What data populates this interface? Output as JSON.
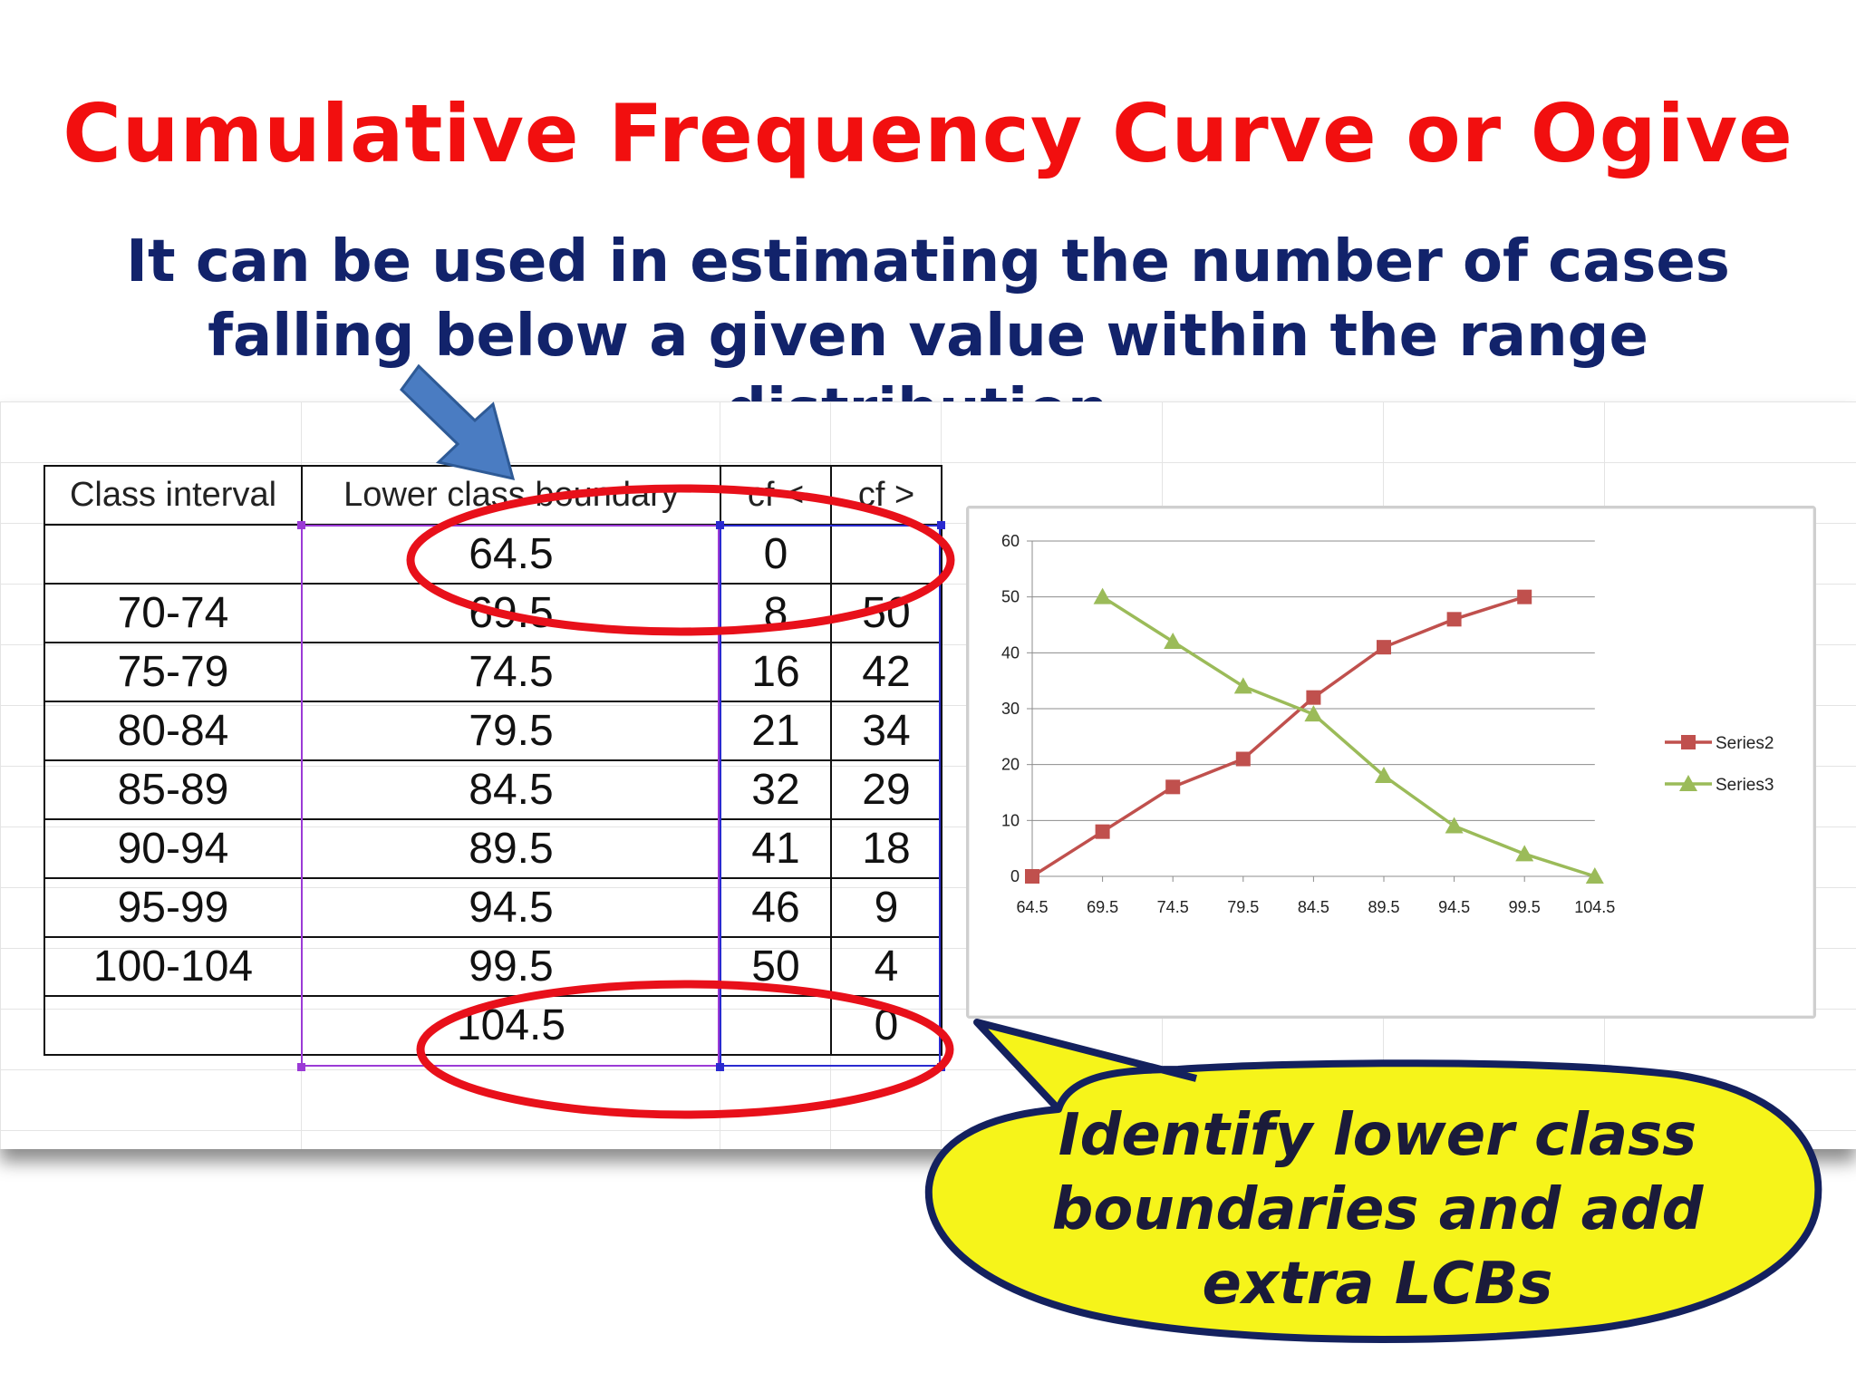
{
  "slide": {
    "title": "Cumulative Frequency Curve or Ogive",
    "subtitle": "It can be used in estimating the number of cases falling below a given value within the range distribution.",
    "callout": "Identify lower class boundaries and add extra LCBs"
  },
  "table": {
    "headers": [
      "Class interval",
      "Lower class boundary",
      "cf <",
      "cf >"
    ],
    "rows": [
      [
        "",
        "64.5",
        "0",
        ""
      ],
      [
        "70-74",
        "69.5",
        "8",
        "50"
      ],
      [
        "75-79",
        "74.5",
        "16",
        "42"
      ],
      [
        "80-84",
        "79.5",
        "21",
        "34"
      ],
      [
        "85-89",
        "84.5",
        "32",
        "29"
      ],
      [
        "90-94",
        "89.5",
        "41",
        "18"
      ],
      [
        "95-99",
        "94.5",
        "46",
        "9"
      ],
      [
        "100-104",
        "99.5",
        "50",
        "4"
      ],
      [
        "",
        "104.5",
        "",
        "0"
      ]
    ]
  },
  "colors": {
    "title": "#f20f0f",
    "subtitle": "#12236b",
    "ellipse": "#e8101a",
    "arrow": "#4a7cc2",
    "callout_fill": "#f6f41a",
    "callout_border": "#14215e",
    "series2": "#c0504d",
    "series3": "#9bbb59"
  },
  "chart_data": {
    "type": "line",
    "categories": [
      "64.5",
      "69.5",
      "74.5",
      "79.5",
      "84.5",
      "89.5",
      "94.5",
      "99.5",
      "104.5"
    ],
    "series": [
      {
        "name": "Series2",
        "marker": "square",
        "color": "#c0504d",
        "values": [
          0,
          8,
          16,
          21,
          32,
          41,
          46,
          50,
          null
        ]
      },
      {
        "name": "Series3",
        "marker": "triangle",
        "color": "#9bbb59",
        "values": [
          null,
          50,
          42,
          34,
          29,
          18,
          9,
          4,
          0
        ]
      }
    ],
    "ylim": [
      0,
      60
    ],
    "yticks": [
      0,
      10,
      20,
      30,
      40,
      50,
      60
    ],
    "grid": "horizontal",
    "legend": "right",
    "title": "",
    "xlabel": "",
    "ylabel": ""
  }
}
